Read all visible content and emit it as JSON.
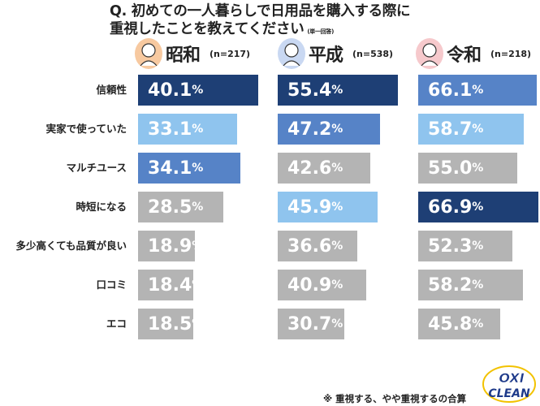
{
  "title_line1": "Q. 初めての一人暮らしで日用品を購入する際に",
  "title_line2": "重視したことを教えてください",
  "title_note": "(単一回答)",
  "footnote": "※ 重視する、やや重視するの合算",
  "logo_text": "OXI CLEAN",
  "colors": {
    "rank1": "#1e3f75",
    "rank2": "#5683c7",
    "rank3": "#8fc4ee",
    "other": "#b4b4b4"
  },
  "chart_data": {
    "type": "bar",
    "orientation": "horizontal",
    "categories": [
      "信頼性",
      "実家で使っていた",
      "マルチユース",
      "時短になる",
      "多少高くても品質が良い",
      "口コミ",
      "エコ"
    ],
    "unit": "%",
    "series": [
      {
        "name": "昭和",
        "n": "(n=217)",
        "values": [
          40.1,
          33.1,
          34.1,
          28.5,
          18.9,
          18.4,
          18.5
        ]
      },
      {
        "name": "平成",
        "n": "(n=538)",
        "values": [
          55.4,
          47.2,
          42.6,
          45.9,
          36.6,
          40.9,
          30.7
        ]
      },
      {
        "name": "令和",
        "n": "(n=218)",
        "values": [
          66.1,
          58.7,
          55.0,
          66.9,
          52.3,
          58.2,
          45.8
        ]
      }
    ]
  }
}
